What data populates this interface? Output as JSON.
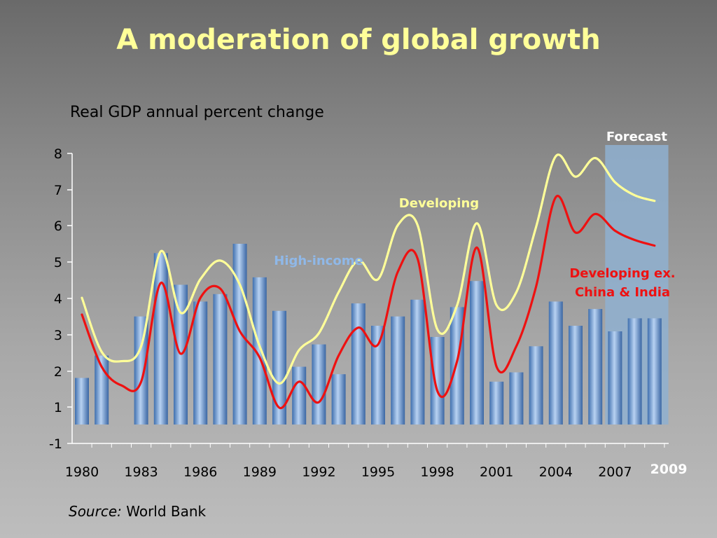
{
  "slide": {
    "title": "A moderation of global growth",
    "subtitle": "Real GDP annual percent change",
    "source_label": "Source:",
    "source_value": "World Bank"
  },
  "chart_data": {
    "type": "bar+line",
    "ylim": [
      -1,
      8
    ],
    "yticks": [
      -1,
      1,
      2,
      3,
      4,
      5,
      6,
      7,
      8
    ],
    "ytick_labels": [
      "-1",
      "1",
      "2",
      "3",
      "4",
      "5",
      "6",
      "7",
      "8"
    ],
    "xticks": [
      1980,
      1983,
      1986,
      1989,
      1992,
      1995,
      1998,
      2001,
      2004,
      2007
    ],
    "xticks_last": 2009,
    "years": [
      1980,
      1981,
      1982,
      1983,
      1984,
      1985,
      1986,
      1987,
      1988,
      1989,
      1990,
      1991,
      1992,
      1993,
      1994,
      1995,
      1996,
      1997,
      1998,
      1999,
      2000,
      2001,
      2002,
      2003,
      2004,
      2005,
      2006,
      2007,
      2008,
      2009
    ],
    "forecast": {
      "label": "Forecast",
      "from": 2006.5,
      "to": 2009.7,
      "color": "#8fb0d0"
    },
    "bars": {
      "name": "High-income",
      "color": "#7fa7d6",
      "label_color": "#8fb8e8",
      "values": [
        1.75,
        2.35,
        null,
        3.4,
        5.1,
        4.25,
        3.8,
        4.0,
        5.35,
        4.45,
        3.55,
        2.05,
        2.65,
        1.85,
        3.75,
        3.15,
        3.4,
        3.85,
        2.85,
        3.65,
        4.35,
        1.65,
        1.9,
        2.6,
        3.8,
        3.15,
        3.6,
        3.0,
        3.35,
        3.35
      ]
    },
    "lines": [
      {
        "name": "Developing",
        "color": "#ffff99",
        "values": [
          3.9,
          2.45,
          2.2,
          2.6,
          5.15,
          3.5,
          4.4,
          4.9,
          4.25,
          2.6,
          1.6,
          2.5,
          2.95,
          4.05,
          4.9,
          4.4,
          5.85,
          5.85,
          3.05,
          3.7,
          5.9,
          3.7,
          4.05,
          5.8,
          7.7,
          7.15,
          7.65,
          7.0,
          6.65,
          6.5
        ]
      },
      {
        "name": "Developing ex. China & India",
        "name_line1": "Developing ex.",
        "name_line2": "China & India",
        "color": "#ee1111",
        "values": [
          3.45,
          2.05,
          1.55,
          1.65,
          4.3,
          2.4,
          3.9,
          4.15,
          3.0,
          2.3,
          0.95,
          1.65,
          1.1,
          2.35,
          3.1,
          2.65,
          4.6,
          4.95,
          1.4,
          2.2,
          5.25,
          2.05,
          2.6,
          4.2,
          6.6,
          5.65,
          6.15,
          5.7,
          5.45,
          5.3
        ]
      }
    ]
  }
}
